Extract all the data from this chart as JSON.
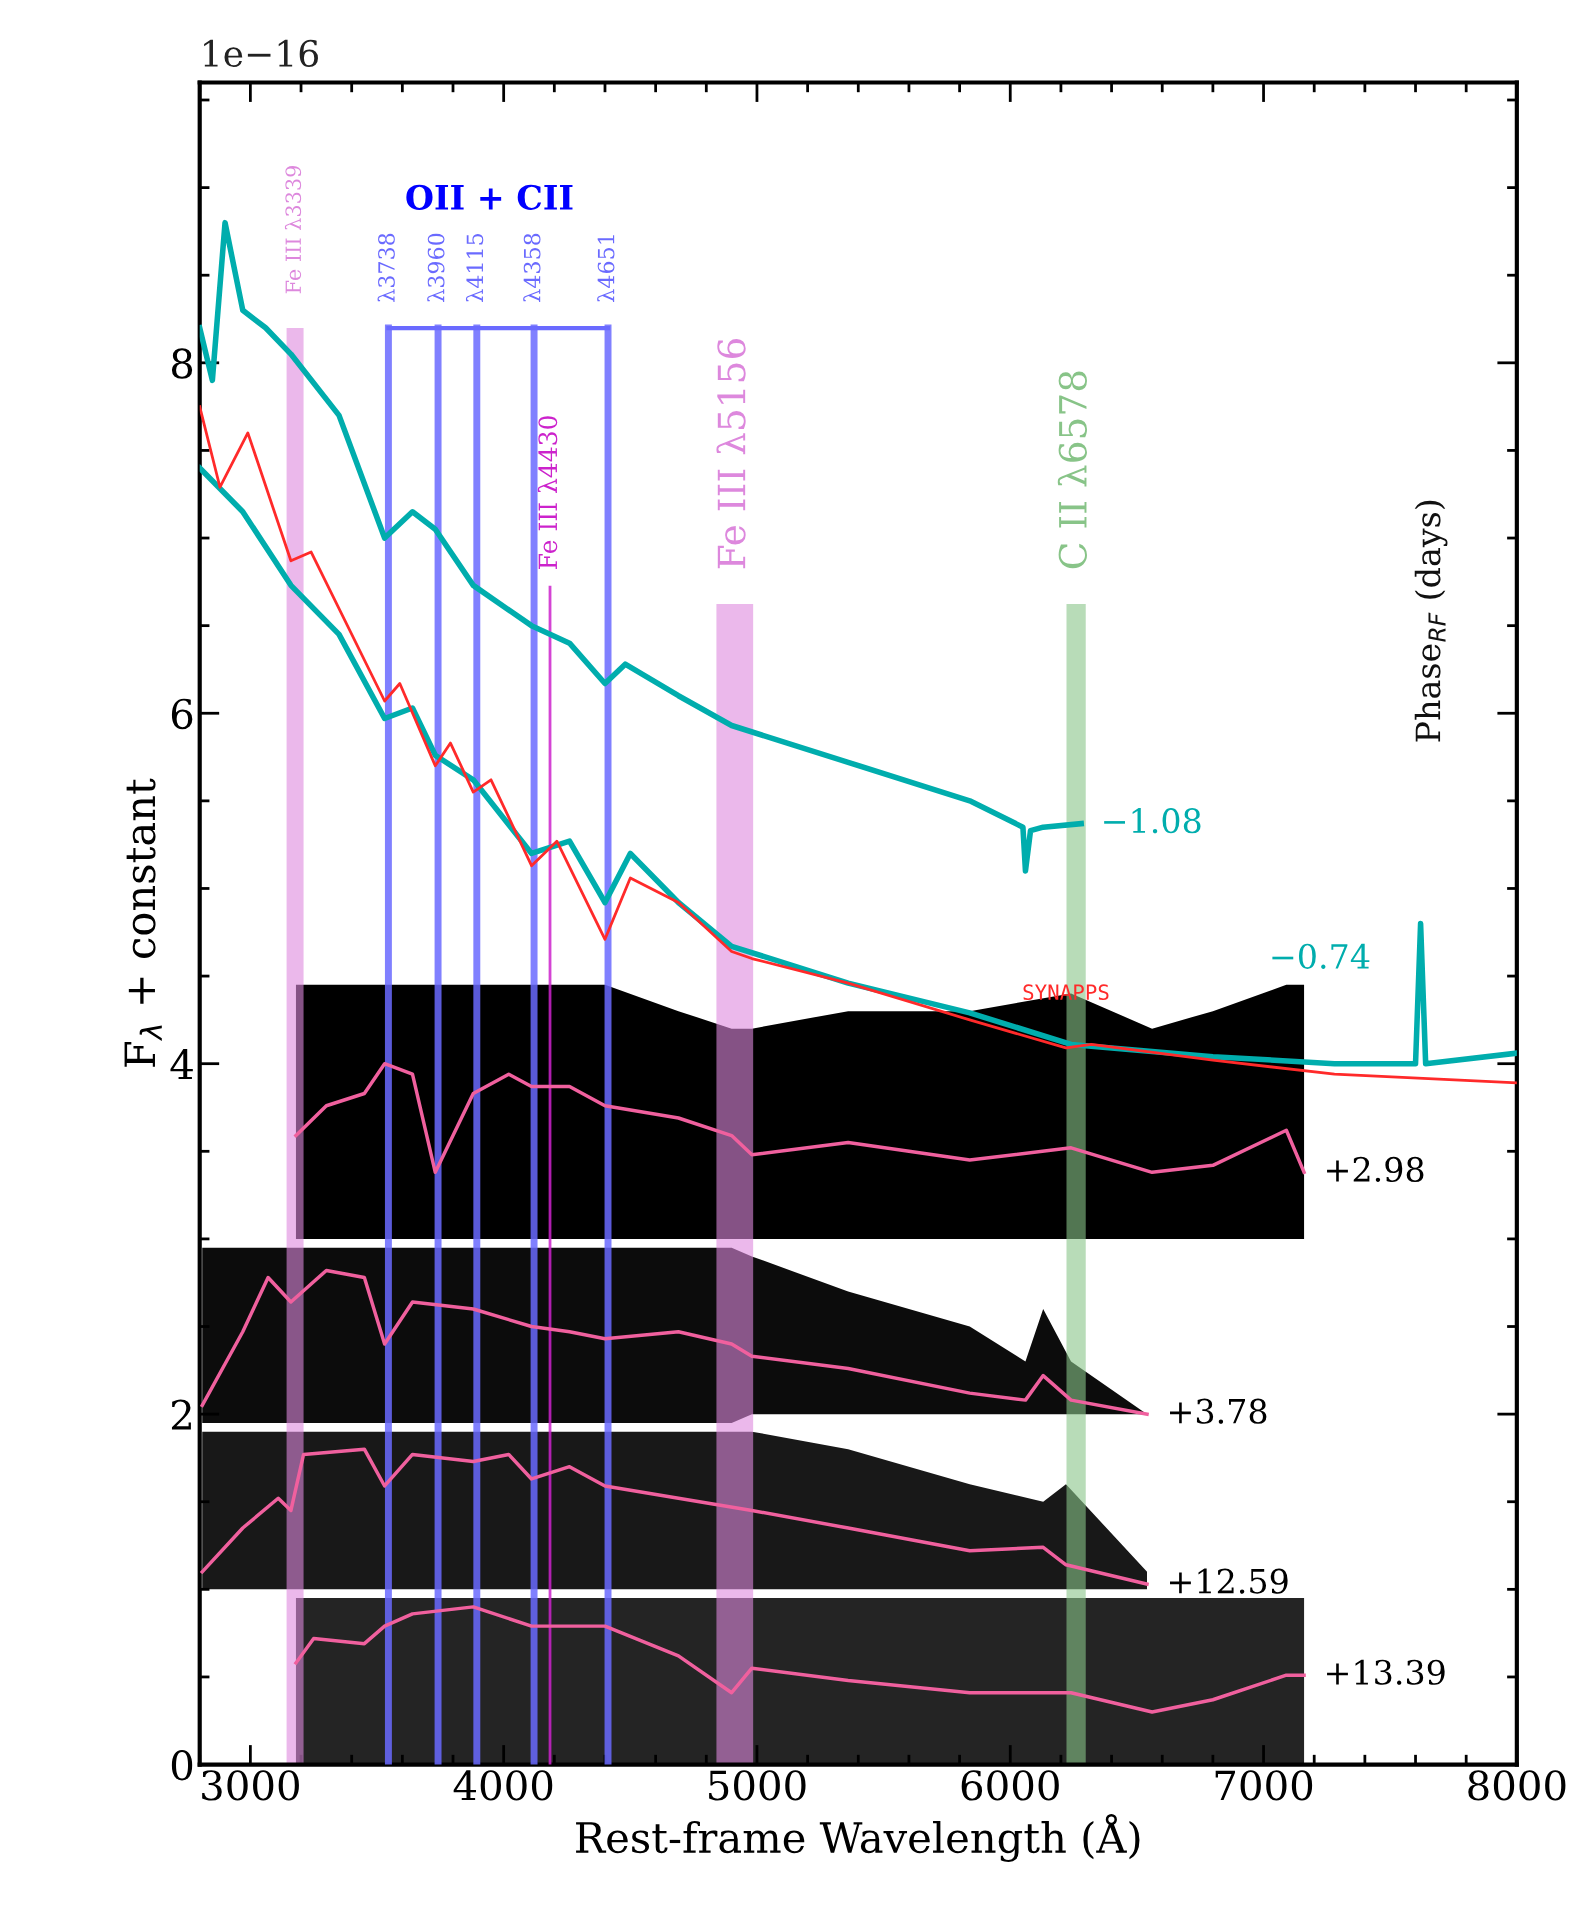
{
  "chart_data": {
    "type": "line",
    "xlabel": "Rest-frame Wavelength (Å)",
    "ylabel": "F$_{λ}$ + constant",
    "xlim": [
      2800,
      8000
    ],
    "ylim": [
      0,
      9.6
    ],
    "xticks": [
      3000,
      4000,
      5000,
      6000,
      7000,
      8000
    ],
    "yticks": [
      0,
      2,
      4,
      6,
      8
    ],
    "series": [
      {
        "name": "−1.08",
        "color": "#00adad",
        "x": [
          2800,
          2850,
          2900,
          2970,
          3060,
          3160,
          3350,
          3530,
          3640,
          3730,
          3880,
          4110,
          4260,
          4400,
          4480,
          4690,
          4900,
          5360,
          5840,
          6050,
          6060,
          6080,
          6130,
          6280
        ],
        "values": [
          8.2,
          7.9,
          8.8,
          8.3,
          8.2,
          8.05,
          7.7,
          7.0,
          7.15,
          7.05,
          6.73,
          6.5,
          6.4,
          6.17,
          6.28,
          6.1,
          5.93,
          5.72,
          5.5,
          5.35,
          5.1,
          5.33,
          5.35,
          5.37
        ]
      },
      {
        "name": "−0.74",
        "color": "#00adad",
        "x": [
          2800,
          2970,
          3160,
          3350,
          3530,
          3640,
          3730,
          3880,
          4110,
          4260,
          4400,
          4500,
          4690,
          4900,
          5360,
          5840,
          6240,
          6800,
          7280,
          7600,
          7620,
          7640,
          8000
        ],
        "values": [
          7.4,
          7.15,
          6.73,
          6.45,
          5.97,
          6.03,
          5.76,
          5.62,
          5.2,
          5.27,
          4.92,
          5.2,
          4.92,
          4.67,
          4.46,
          4.29,
          4.11,
          4.04,
          4.0,
          4.0,
          4.8,
          4.0,
          4.06
        ]
      },
      {
        "name": "SYNAPPS",
        "color": "#ff2a2a",
        "x": [
          2800,
          2880,
          2990,
          3160,
          3240,
          3530,
          3590,
          3730,
          3790,
          3880,
          3950,
          4110,
          4210,
          4400,
          4500,
          4690,
          4900,
          4980,
          5360,
          5840,
          6220,
          6320,
          6800,
          7280,
          8000
        ],
        "values": [
          7.75,
          7.29,
          7.6,
          6.87,
          6.92,
          6.07,
          6.17,
          5.7,
          5.83,
          5.55,
          5.62,
          5.13,
          5.27,
          4.71,
          5.06,
          4.92,
          4.64,
          4.6,
          4.46,
          4.25,
          4.09,
          4.11,
          4.02,
          3.94,
          3.89
        ]
      },
      {
        "name": "+2.98",
        "color": "#f0609e",
        "x": [
          3180,
          3300,
          3450,
          3530,
          3640,
          3730,
          3880,
          4020,
          4110,
          4260,
          4400,
          4690,
          4900,
          4980,
          5360,
          5840,
          6240,
          6560,
          6800,
          7090,
          7160
        ],
        "values": [
          3.59,
          3.76,
          3.83,
          4.0,
          3.94,
          3.38,
          3.83,
          3.94,
          3.87,
          3.87,
          3.76,
          3.69,
          3.59,
          3.48,
          3.55,
          3.45,
          3.52,
          3.38,
          3.42,
          3.62,
          3.38
        ],
        "lower": [
          3.0,
          3.0,
          3.0,
          3.0,
          3.0,
          3.0,
          3.0,
          3.0,
          3.0,
          3.0,
          3.0,
          3.0,
          3.0,
          3.0,
          3.0,
          3.0,
          3.0,
          3.0,
          3.0,
          3.0,
          3.0
        ],
        "upper": [
          4.45,
          4.45,
          4.45,
          4.45,
          4.45,
          4.45,
          4.45,
          4.45,
          4.45,
          4.45,
          4.45,
          4.3,
          4.2,
          4.2,
          4.3,
          4.3,
          4.4,
          4.2,
          4.3,
          4.45,
          4.45
        ]
      },
      {
        "name": "+3.78",
        "color": "#f0609e",
        "x": [
          2810,
          2970,
          3070,
          3160,
          3300,
          3450,
          3530,
          3640,
          3880,
          4110,
          4260,
          4400,
          4690,
          4900,
          4980,
          5360,
          5840,
          6060,
          6130,
          6240,
          6540
        ],
        "values": [
          2.05,
          2.47,
          2.78,
          2.64,
          2.82,
          2.78,
          2.4,
          2.64,
          2.6,
          2.5,
          2.47,
          2.43,
          2.47,
          2.4,
          2.33,
          2.26,
          2.12,
          2.08,
          2.22,
          2.08,
          2.0
        ],
        "lower": [
          1.95,
          1.95,
          1.95,
          1.95,
          1.95,
          1.95,
          1.95,
          1.95,
          1.95,
          1.95,
          1.95,
          1.95,
          1.95,
          1.95,
          2.0,
          2.0,
          2.0,
          2.0,
          2.0,
          2.0,
          2.0
        ],
        "upper": [
          2.95,
          2.95,
          2.95,
          2.95,
          2.95,
          2.95,
          2.95,
          2.95,
          2.95,
          2.95,
          2.95,
          2.95,
          2.95,
          2.95,
          2.9,
          2.7,
          2.5,
          2.3,
          2.6,
          2.3,
          2.0
        ]
      },
      {
        "name": "+12.59",
        "color": "#f0609e",
        "x": [
          2810,
          2970,
          3110,
          3160,
          3210,
          3450,
          3530,
          3640,
          3880,
          4020,
          4110,
          4260,
          4400,
          4690,
          4980,
          5360,
          5840,
          6130,
          6220,
          6540
        ],
        "values": [
          1.1,
          1.35,
          1.52,
          1.45,
          1.77,
          1.8,
          1.59,
          1.77,
          1.73,
          1.77,
          1.63,
          1.7,
          1.59,
          1.52,
          1.45,
          1.35,
          1.22,
          1.24,
          1.14,
          1.03
        ],
        "lower": [
          1.0,
          1.0,
          1.0,
          1.0,
          1.0,
          1.0,
          1.0,
          1.0,
          1.0,
          1.0,
          1.0,
          1.0,
          1.0,
          1.0,
          1.0,
          1.0,
          1.0,
          1.0,
          1.0,
          1.0
        ],
        "upper": [
          1.9,
          1.9,
          1.9,
          1.9,
          1.9,
          1.9,
          1.9,
          1.9,
          1.9,
          1.9,
          1.9,
          1.9,
          1.9,
          1.9,
          1.9,
          1.8,
          1.6,
          1.5,
          1.6,
          1.1
        ]
      },
      {
        "name": "+13.39",
        "color": "#f0609e",
        "x": [
          3180,
          3250,
          3450,
          3530,
          3640,
          3880,
          4110,
          4400,
          4690,
          4900,
          4980,
          5360,
          5840,
          6240,
          6560,
          6800,
          7090,
          7160
        ],
        "values": [
          0.58,
          0.72,
          0.69,
          0.79,
          0.86,
          0.9,
          0.79,
          0.79,
          0.62,
          0.41,
          0.55,
          0.48,
          0.41,
          0.41,
          0.3,
          0.37,
          0.51,
          0.51
        ],
        "lower": [
          0,
          0,
          0,
          0,
          0,
          0,
          0,
          0,
          0,
          0,
          0,
          0,
          0,
          0,
          0,
          0,
          0,
          0
        ],
        "upper": [
          0.95,
          0.95,
          0.95,
          0.95,
          0.95,
          0.95,
          0.95,
          0.95,
          0.95,
          0.95,
          0.95,
          0.95,
          0.95,
          0.95,
          0.95,
          0.95,
          0.95,
          0.95
        ]
      }
    ],
    "ref_lines": [
      {
        "axis": "x",
        "value": 3545,
        "label": "λ3738",
        "color": "#6a6aff"
      },
      {
        "axis": "x",
        "value": 3741,
        "label": "λ3960",
        "color": "#6a6aff"
      },
      {
        "axis": "x",
        "value": 3894,
        "label": "λ4115",
        "color": "#6a6aff"
      },
      {
        "axis": "x",
        "value": 4120,
        "label": "λ4358",
        "color": "#6a6aff"
      },
      {
        "axis": "x",
        "value": 4412,
        "label": "λ4651",
        "color": "#6a6aff"
      },
      {
        "axis": "x",
        "value": 4183,
        "label": "Fe III λ4430",
        "color": "#cc22cc"
      }
    ],
    "bands": [
      {
        "axis": "x",
        "from": 3143,
        "to": 3210,
        "label": "Fe III λ3339",
        "color": "#dd88dd"
      },
      {
        "axis": "x",
        "from": 4840,
        "to": 4985,
        "label": "Fe III λ5156",
        "color": "#dd88dd"
      },
      {
        "axis": "x",
        "from": 6222,
        "to": 6298,
        "label": "C II λ6578",
        "color": "#88c488"
      }
    ],
    "annotations": [
      "1e−16",
      "OII + CII",
      "Phase$_{RF}$ (days)"
    ]
  }
}
